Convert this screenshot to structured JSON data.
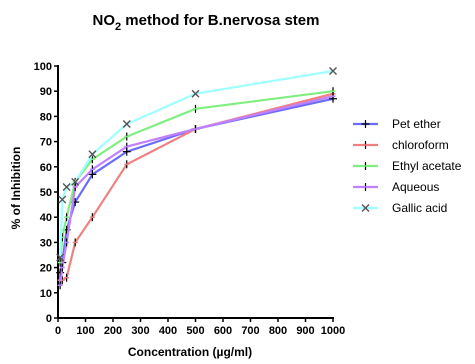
{
  "chart_data": {
    "type": "line",
    "title": {
      "prefix": "NO",
      "subscript": "2",
      "suffix": " method for B.nervosa stem"
    },
    "xlabel": "Concentration (µg/ml)",
    "ylabel": "% of Inhibition",
    "xlim": [
      0,
      1000
    ],
    "ylim": [
      0,
      100
    ],
    "xticks": [
      0,
      100,
      200,
      300,
      400,
      500,
      600,
      700,
      800,
      900,
      1000
    ],
    "yticks": [
      0,
      10,
      20,
      30,
      40,
      50,
      60,
      70,
      80,
      90,
      100
    ],
    "grid": false,
    "legend_position": "right",
    "x": [
      7.8,
      15.6,
      31.25,
      62.5,
      125,
      250,
      500,
      1000
    ],
    "series": [
      {
        "name": "Pet ether",
        "color": "#6b6bff",
        "marker": "plus",
        "values": [
          18,
          22,
          35,
          46,
          57,
          66,
          75,
          87
        ]
      },
      {
        "name": "chloroform",
        "color": "#f08080",
        "marker": "dash",
        "values": [
          15,
          15,
          16,
          30,
          40,
          61,
          75,
          89
        ]
      },
      {
        "name": "Ethyl acetate",
        "color": "#80ee80",
        "marker": "dash",
        "values": [
          22,
          32,
          40,
          54,
          63,
          72,
          83,
          90
        ]
      },
      {
        "name": "Aqueous",
        "color": "#c080ff",
        "marker": "dash",
        "values": [
          13,
          20,
          30,
          52,
          59,
          68,
          75,
          88
        ]
      },
      {
        "name": "Gallic acid",
        "color": "#a0ffff",
        "marker": "x",
        "values": [
          24,
          47,
          52,
          54,
          65,
          77,
          89,
          98
        ]
      }
    ]
  }
}
